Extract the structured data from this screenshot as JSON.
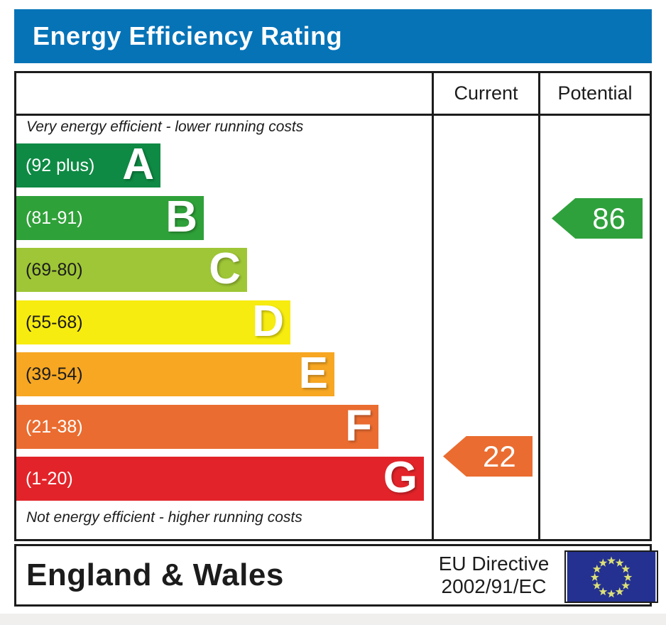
{
  "title": "Energy Efficiency Rating",
  "columns": {
    "current": "Current",
    "potential": "Potential"
  },
  "top_note": "Very energy efficient - lower running costs",
  "bottom_note": "Not energy efficient - higher running costs",
  "bands": [
    {
      "letter": "A",
      "range": "(92 plus)",
      "color": "#0e8a44",
      "label_color": "#ffffff"
    },
    {
      "letter": "B",
      "range": "(81-91)",
      "color": "#2fa139",
      "label_color": "#ffffff"
    },
    {
      "letter": "C",
      "range": "(69-80)",
      "color": "#9ec636",
      "label_color": "#1c1c1c"
    },
    {
      "letter": "D",
      "range": "(55-68)",
      "color": "#f7ec0f",
      "label_color": "#1c1c1c"
    },
    {
      "letter": "E",
      "range": "(39-54)",
      "color": "#f7a722",
      "label_color": "#1c1c1c"
    },
    {
      "letter": "F",
      "range": "(21-38)",
      "color": "#ea6c30",
      "label_color": "#ffffff"
    },
    {
      "letter": "G",
      "range": "(1-20)",
      "color": "#e2242a",
      "label_color": "#ffffff"
    }
  ],
  "current": {
    "label": "22",
    "color": "#ea6c30",
    "band": "F"
  },
  "potential": {
    "label": "86",
    "color": "#2fa13c",
    "band": "B"
  },
  "footer": {
    "region": "England & Wales",
    "directive_line1": "EU Directive",
    "directive_line2": "2002/91/EC"
  },
  "flag": {
    "background": "#243190",
    "star_color": "#dce077"
  },
  "colors": {
    "title_bar": "#0673b7",
    "border": "#1c1c1c"
  },
  "chart_data": {
    "type": "bar",
    "title": "Energy Efficiency Rating",
    "categories": [
      "A (92 plus)",
      "B (81-91)",
      "C (69-80)",
      "D (55-68)",
      "E (39-54)",
      "F (21-38)",
      "G (1-20)"
    ],
    "band_ranges": [
      [
        92,
        100
      ],
      [
        81,
        91
      ],
      [
        69,
        80
      ],
      [
        55,
        68
      ],
      [
        39,
        54
      ],
      [
        21,
        38
      ],
      [
        1,
        20
      ]
    ],
    "band_colors": [
      "#0e8a44",
      "#2fa139",
      "#9ec636",
      "#f7ec0f",
      "#f7a722",
      "#ea6c30",
      "#e2242a"
    ],
    "columns": [
      "Current",
      "Potential"
    ],
    "current": {
      "value": 22,
      "band": "F"
    },
    "potential": {
      "value": 86,
      "band": "B"
    },
    "annotations": [
      "Very energy efficient - lower running costs",
      "Not energy efficient - higher running costs"
    ],
    "footer_region": "England & Wales",
    "footer_directive": "EU Directive 2002/91/EC"
  }
}
